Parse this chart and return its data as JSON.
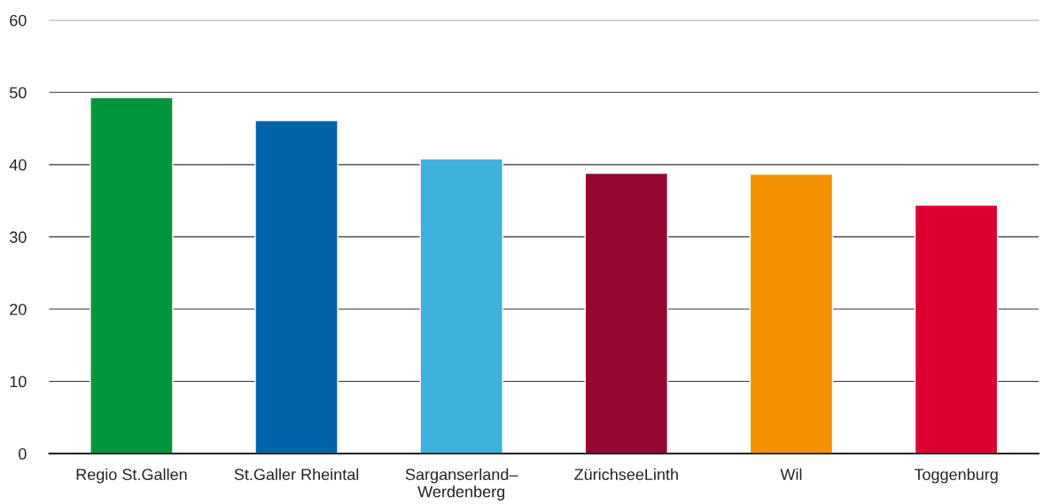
{
  "chart_data": {
    "type": "bar",
    "categories": [
      "Regio St.Gallen",
      "St.Galler Rheintal",
      "Sarganserland–\nWerdenberg",
      "ZürichseeLinth",
      "Wil",
      "Toggenburg"
    ],
    "values": [
      49.3,
      46.1,
      40.8,
      38.8,
      38.7,
      34.4
    ],
    "colors": [
      "#009639",
      "#0064a8",
      "#3fb1dd",
      "#940532",
      "#f39200",
      "#db002f"
    ],
    "ylim": [
      0,
      60
    ],
    "yticks": [
      0,
      10,
      20,
      30,
      40,
      50,
      60
    ],
    "grid": "y",
    "legend": false
  }
}
